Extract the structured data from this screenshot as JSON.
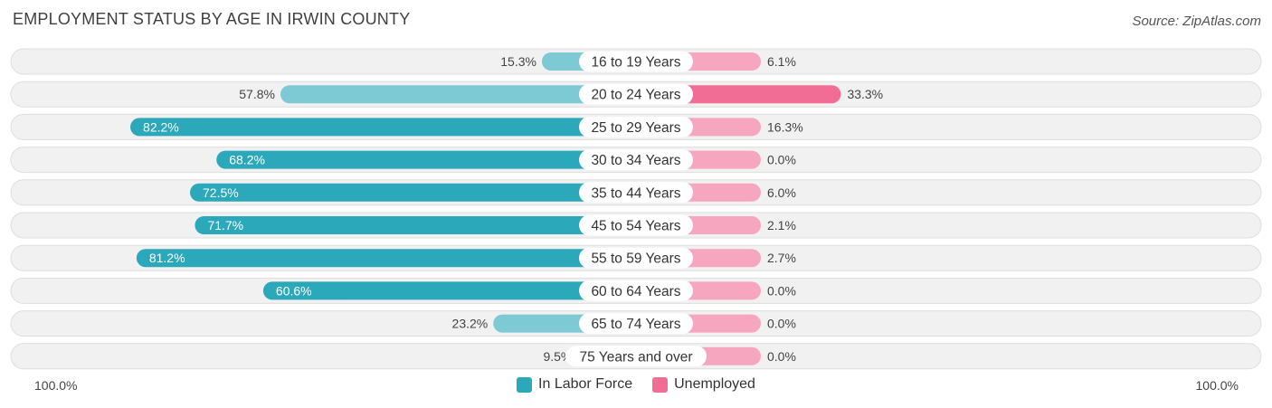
{
  "title": "EMPLOYMENT STATUS BY AGE IN IRWIN COUNTY",
  "source": "Source: ZipAtlas.com",
  "axis": {
    "left_label": "100.0%",
    "right_label": "100.0%"
  },
  "colors": {
    "labor_dark": "#2ba8ba",
    "labor_light": "#7dcad4",
    "unemployed_dark": "#f26d96",
    "unemployed_light": "#f7a6bf",
    "row_bg": "#f1f1f1",
    "row_border": "#dedede"
  },
  "legend": [
    {
      "label": "In Labor Force",
      "color": "#2ba8ba"
    },
    {
      "label": "Unemployed",
      "color": "#f26d96"
    }
  ],
  "chart_data": {
    "type": "bar",
    "orientation": "horizontal-diverging",
    "title": "EMPLOYMENT STATUS BY AGE IN IRWIN COUNTY",
    "categories": [
      "16 to 19 Years",
      "20 to 24 Years",
      "25 to 29 Years",
      "30 to 34 Years",
      "35 to 44 Years",
      "45 to 54 Years",
      "55 to 59 Years",
      "60 to 64 Years",
      "65 to 74 Years",
      "75 Years and over"
    ],
    "series": [
      {
        "name": "In Labor Force",
        "values": [
          15.3,
          57.8,
          82.2,
          68.2,
          72.5,
          71.7,
          81.2,
          60.6,
          23.2,
          9.5
        ],
        "labels": [
          "15.3%",
          "57.8%",
          "82.2%",
          "68.2%",
          "72.5%",
          "71.7%",
          "81.2%",
          "60.6%",
          "23.2%",
          "9.5%"
        ]
      },
      {
        "name": "Unemployed",
        "values": [
          6.1,
          33.3,
          16.3,
          0.0,
          6.0,
          2.1,
          2.7,
          0.0,
          0.0,
          0.0
        ],
        "labels": [
          "6.1%",
          "33.3%",
          "16.3%",
          "0.0%",
          "6.0%",
          "2.1%",
          "2.7%",
          "0.0%",
          "0.0%",
          "0.0%"
        ]
      }
    ],
    "xlim": [
      -100,
      100
    ],
    "legend_position": "bottom-center",
    "grid": false
  }
}
